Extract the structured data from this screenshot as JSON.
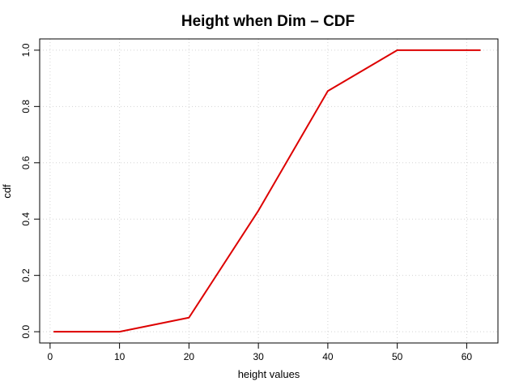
{
  "chart_data": {
    "type": "line",
    "title": "Height when Dim – CDF",
    "xlabel": "height values",
    "ylabel": "cdf",
    "xlim": [
      -1.5,
      64.5
    ],
    "ylim": [
      -0.04,
      1.04
    ],
    "xticks": [
      0,
      10,
      20,
      30,
      40,
      50,
      60
    ],
    "xtick_labels": [
      "0",
      "10",
      "20",
      "30",
      "40",
      "50",
      "60"
    ],
    "yticks": [
      0,
      0.2,
      0.4,
      0.6,
      0.8,
      1.0
    ],
    "ytick_labels": [
      "0.0",
      "0.2",
      "0.4",
      "0.6",
      "0.8",
      "1.0"
    ],
    "grid": true,
    "series": [
      {
        "color": "#dd0000",
        "x": [
          0.5,
          10,
          20,
          30,
          40,
          50,
          62
        ],
        "y": [
          0.0,
          0.0,
          0.05,
          0.43,
          0.855,
          1.0,
          1.0
        ]
      }
    ]
  }
}
